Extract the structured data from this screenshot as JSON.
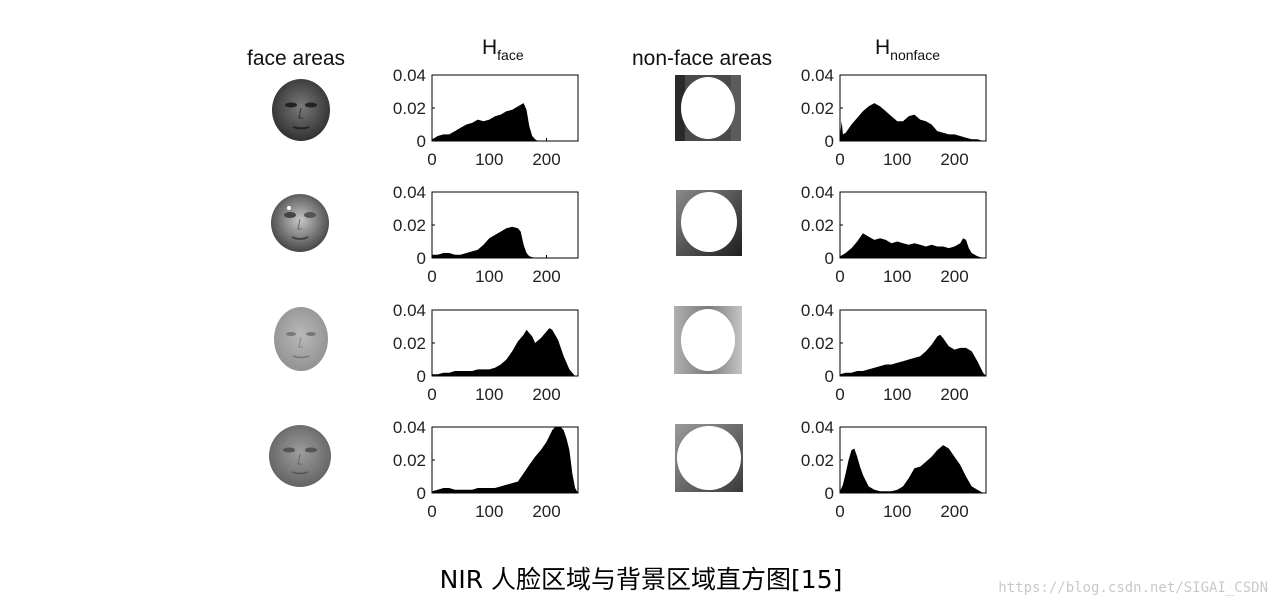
{
  "headers": {
    "face_areas": "face areas",
    "h_face_base": "H",
    "h_face_sub": "face",
    "non_face_areas": "non-face areas",
    "h_nonface_base": "H",
    "h_nonface_sub": "nonface"
  },
  "caption": "NIR 人脸区域与背景区域直方图[15]",
  "watermark": "https://blog.csdn.net/SIGAI_CSDN",
  "chart_data": [
    {
      "type": "area",
      "name": "face-row1",
      "xlim": [
        0,
        255
      ],
      "ylim": [
        0,
        0.04
      ],
      "xticks": [
        0,
        100,
        200
      ],
      "yticks": [
        "0.04",
        "0.02",
        "0"
      ],
      "x": [
        0,
        5,
        10,
        20,
        30,
        40,
        50,
        60,
        70,
        80,
        90,
        100,
        110,
        120,
        130,
        140,
        150,
        155,
        160,
        165,
        170,
        175,
        180,
        185,
        190,
        200,
        210,
        220,
        230,
        240,
        250,
        255
      ],
      "y": [
        0.001,
        0.002,
        0.003,
        0.004,
        0.004,
        0.006,
        0.008,
        0.01,
        0.011,
        0.013,
        0.012,
        0.013,
        0.015,
        0.016,
        0.018,
        0.019,
        0.021,
        0.022,
        0.023,
        0.019,
        0.009,
        0.003,
        0.001,
        0,
        0,
        0,
        0,
        0,
        0,
        0,
        0,
        0
      ]
    },
    {
      "type": "area",
      "name": "nonface-row1",
      "xlim": [
        0,
        255
      ],
      "ylim": [
        0,
        0.04
      ],
      "xticks": [
        0,
        100,
        200
      ],
      "yticks": [
        "0.04",
        "0.02",
        "0"
      ],
      "x": [
        0,
        3,
        5,
        10,
        20,
        30,
        40,
        50,
        60,
        70,
        80,
        90,
        100,
        110,
        120,
        130,
        140,
        150,
        160,
        170,
        180,
        190,
        200,
        210,
        220,
        230,
        240,
        250,
        255
      ],
      "y": [
        0.003,
        0.012,
        0.004,
        0.005,
        0.01,
        0.014,
        0.018,
        0.021,
        0.023,
        0.021,
        0.018,
        0.015,
        0.012,
        0.012,
        0.015,
        0.016,
        0.013,
        0.012,
        0.01,
        0.006,
        0.005,
        0.004,
        0.004,
        0.003,
        0.002,
        0.001,
        0.001,
        0,
        0
      ]
    },
    {
      "type": "area",
      "name": "face-row2",
      "xlim": [
        0,
        255
      ],
      "ylim": [
        0,
        0.04
      ],
      "xticks": [
        0,
        100,
        200
      ],
      "yticks": [
        "0.04",
        "0.02",
        "0"
      ],
      "x": [
        0,
        10,
        20,
        30,
        40,
        50,
        60,
        70,
        80,
        90,
        100,
        110,
        120,
        130,
        140,
        150,
        155,
        160,
        165,
        170,
        180,
        190,
        200,
        210,
        220,
        230,
        240,
        250,
        255
      ],
      "y": [
        0.002,
        0.002,
        0.003,
        0.003,
        0.002,
        0.002,
        0.003,
        0.004,
        0.005,
        0.008,
        0.012,
        0.014,
        0.016,
        0.018,
        0.019,
        0.018,
        0.016,
        0.008,
        0.003,
        0.001,
        0,
        0,
        0,
        0,
        0,
        0,
        0,
        0,
        0
      ]
    },
    {
      "type": "area",
      "name": "nonface-row2",
      "xlim": [
        0,
        255
      ],
      "ylim": [
        0,
        0.04
      ],
      "xticks": [
        0,
        100,
        200
      ],
      "yticks": [
        "0.04",
        "0.02",
        "0"
      ],
      "x": [
        0,
        5,
        10,
        20,
        30,
        40,
        50,
        60,
        70,
        80,
        90,
        100,
        110,
        120,
        130,
        140,
        150,
        160,
        170,
        180,
        190,
        200,
        210,
        215,
        220,
        225,
        230,
        240,
        250,
        255
      ],
      "y": [
        0.001,
        0.002,
        0.003,
        0.006,
        0.01,
        0.015,
        0.013,
        0.011,
        0.012,
        0.011,
        0.009,
        0.01,
        0.009,
        0.008,
        0.009,
        0.008,
        0.007,
        0.008,
        0.007,
        0.007,
        0.006,
        0.007,
        0.009,
        0.012,
        0.011,
        0.006,
        0.003,
        0.001,
        0,
        0
      ]
    },
    {
      "type": "area",
      "name": "face-row3",
      "xlim": [
        0,
        255
      ],
      "ylim": [
        0,
        0.04
      ],
      "xticks": [
        0,
        100,
        200
      ],
      "yticks": [
        "0.04",
        "0.02",
        "0"
      ],
      "x": [
        0,
        10,
        20,
        30,
        40,
        50,
        60,
        70,
        80,
        90,
        100,
        110,
        120,
        130,
        140,
        150,
        160,
        165,
        170,
        175,
        180,
        190,
        200,
        205,
        210,
        220,
        230,
        240,
        245,
        250,
        255
      ],
      "y": [
        0.001,
        0.001,
        0.002,
        0.002,
        0.003,
        0.003,
        0.003,
        0.003,
        0.004,
        0.004,
        0.004,
        0.005,
        0.007,
        0.01,
        0.015,
        0.021,
        0.025,
        0.028,
        0.026,
        0.024,
        0.02,
        0.023,
        0.027,
        0.029,
        0.028,
        0.022,
        0.012,
        0.004,
        0.002,
        0,
        0
      ]
    },
    {
      "type": "area",
      "name": "nonface-row3",
      "xlim": [
        0,
        255
      ],
      "ylim": [
        0,
        0.04
      ],
      "xticks": [
        0,
        100,
        200
      ],
      "yticks": [
        "0.04",
        "0.02",
        "0"
      ],
      "x": [
        0,
        10,
        20,
        30,
        40,
        50,
        60,
        70,
        80,
        90,
        100,
        110,
        120,
        130,
        140,
        150,
        160,
        170,
        175,
        180,
        190,
        200,
        210,
        220,
        230,
        240,
        250,
        255
      ],
      "y": [
        0.001,
        0.002,
        0.002,
        0.003,
        0.003,
        0.004,
        0.005,
        0.006,
        0.007,
        0.007,
        0.008,
        0.009,
        0.01,
        0.011,
        0.012,
        0.015,
        0.019,
        0.024,
        0.025,
        0.023,
        0.018,
        0.016,
        0.017,
        0.017,
        0.015,
        0.009,
        0.002,
        0
      ]
    },
    {
      "type": "area",
      "name": "face-row4",
      "xlim": [
        0,
        255
      ],
      "ylim": [
        0,
        0.04
      ],
      "xticks": [
        0,
        100,
        200
      ],
      "yticks": [
        "0.04",
        "0.02",
        "0"
      ],
      "x": [
        0,
        10,
        20,
        30,
        40,
        50,
        60,
        70,
        80,
        90,
        100,
        110,
        120,
        130,
        140,
        150,
        160,
        170,
        180,
        190,
        200,
        210,
        215,
        220,
        225,
        230,
        235,
        240,
        245,
        250,
        255
      ],
      "y": [
        0.001,
        0.002,
        0.003,
        0.003,
        0.002,
        0.002,
        0.002,
        0.002,
        0.003,
        0.003,
        0.003,
        0.003,
        0.004,
        0.005,
        0.006,
        0.007,
        0.012,
        0.017,
        0.022,
        0.026,
        0.031,
        0.038,
        0.041,
        0.041,
        0.04,
        0.038,
        0.033,
        0.026,
        0.012,
        0.003,
        0
      ]
    },
    {
      "type": "area",
      "name": "nonface-row4",
      "xlim": [
        0,
        255
      ],
      "ylim": [
        0,
        0.04
      ],
      "xticks": [
        0,
        100,
        200
      ],
      "yticks": [
        "0.04",
        "0.02",
        "0"
      ],
      "x": [
        0,
        5,
        10,
        15,
        20,
        25,
        30,
        35,
        40,
        50,
        60,
        70,
        80,
        90,
        100,
        110,
        120,
        130,
        140,
        150,
        160,
        170,
        180,
        190,
        200,
        210,
        220,
        230,
        240,
        250,
        255
      ],
      "y": [
        0.001,
        0.005,
        0.012,
        0.02,
        0.026,
        0.027,
        0.022,
        0.016,
        0.011,
        0.004,
        0.002,
        0.001,
        0.001,
        0.001,
        0.002,
        0.004,
        0.009,
        0.015,
        0.016,
        0.019,
        0.022,
        0.026,
        0.029,
        0.027,
        0.022,
        0.017,
        0.01,
        0.004,
        0.002,
        0,
        0
      ]
    }
  ]
}
